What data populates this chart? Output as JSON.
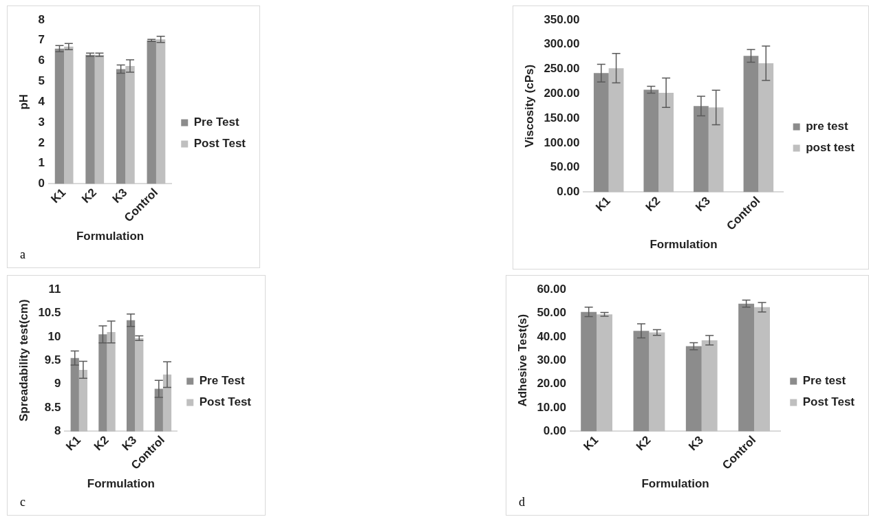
{
  "chart_data": [
    {
      "type": "bar",
      "xlabel": "Formulation",
      "ylabel": "pH",
      "categories": [
        "K1",
        "K2",
        "K3",
        "Control"
      ],
      "ylim": [
        0,
        8
      ],
      "yticks": [
        0,
        1,
        2,
        3,
        4,
        5,
        6,
        7,
        8
      ],
      "legend": "right",
      "grid": false,
      "annotations": [
        "a"
      ],
      "series": [
        {
          "name": "Pre Test",
          "color": "#8c8c8c",
          "values": [
            6.6,
            6.3,
            5.6,
            7.0
          ],
          "errors": [
            0.15,
            0.08,
            0.2,
            0.05
          ]
        },
        {
          "name": "Post Test",
          "color": "#bfbfbf",
          "values": [
            6.7,
            6.3,
            5.75,
            7.05
          ],
          "errors": [
            0.15,
            0.08,
            0.3,
            0.15
          ]
        }
      ]
    },
    {
      "type": "bar",
      "xlabel": "Formulation",
      "ylabel": "Viscosity (cPs)",
      "categories": [
        "K1",
        "K2",
        "K3",
        "Control"
      ],
      "ylim": [
        0,
        350
      ],
      "yticks": [
        {
          "value": 0,
          "label": "0.00"
        },
        {
          "value": 50,
          "label": "50.00"
        },
        {
          "value": 100,
          "label": "100.00"
        },
        {
          "value": 150,
          "label": "150.00"
        },
        {
          "value": 200,
          "label": "200.00"
        },
        {
          "value": 250,
          "label": "250.00"
        },
        {
          "value": 300,
          "label": "300.00"
        },
        {
          "value": 350,
          "label": "350.00"
        }
      ],
      "legend": "right",
      "grid": false,
      "series": [
        {
          "name": "pre test",
          "color": "#8c8c8c",
          "values": [
            242,
            208,
            175,
            277
          ],
          "errors": [
            18,
            7,
            20,
            13
          ]
        },
        {
          "name": "post test",
          "color": "#bfbfbf",
          "values": [
            252,
            202,
            172,
            262
          ],
          "errors": [
            30,
            30,
            35,
            35
          ]
        }
      ]
    },
    {
      "type": "bar",
      "xlabel": "Formulation",
      "ylabel": "Spreadability test(cm)",
      "categories": [
        "K1",
        "K2",
        "K3",
        "Control"
      ],
      "ylim": [
        8,
        11
      ],
      "yticks": [
        8,
        8.5,
        9,
        9.5,
        10,
        10.5,
        11
      ],
      "legend": "right",
      "grid": false,
      "annotations": [
        "c"
      ],
      "series": [
        {
          "name": "Pre Test",
          "color": "#8c8c8c",
          "values": [
            9.55,
            10.05,
            10.35,
            8.9
          ],
          "errors": [
            0.15,
            0.18,
            0.13,
            0.18
          ]
        },
        {
          "name": "Post Test",
          "color": "#bfbfbf",
          "values": [
            9.3,
            10.1,
            9.97,
            9.2
          ],
          "errors": [
            0.18,
            0.23,
            0.05,
            0.27
          ]
        }
      ]
    },
    {
      "type": "bar",
      "xlabel": "Formulation",
      "ylabel": "Adhesive Test(s)",
      "categories": [
        "K1",
        "K2",
        "K3",
        "Control"
      ],
      "ylim": [
        0,
        60
      ],
      "yticks": [
        {
          "value": 0,
          "label": "0.00"
        },
        {
          "value": 10,
          "label": "10.00"
        },
        {
          "value": 20,
          "label": "20.00"
        },
        {
          "value": 30,
          "label": "30.00"
        },
        {
          "value": 40,
          "label": "40.00"
        },
        {
          "value": 50,
          "label": "50.00"
        },
        {
          "value": 60,
          "label": "60.00"
        }
      ],
      "legend": "right",
      "grid": false,
      "annotations": [
        "d"
      ],
      "series": [
        {
          "name": "Pre test",
          "color": "#8c8c8c",
          "values": [
            50.5,
            42.5,
            36,
            54
          ],
          "errors": [
            2,
            3,
            1.5,
            1.5
          ]
        },
        {
          "name": "Post Test",
          "color": "#bfbfbf",
          "values": [
            49.5,
            41.8,
            38.5,
            52.5
          ],
          "errors": [
            0.8,
            1.2,
            2,
            2
          ]
        }
      ]
    }
  ]
}
